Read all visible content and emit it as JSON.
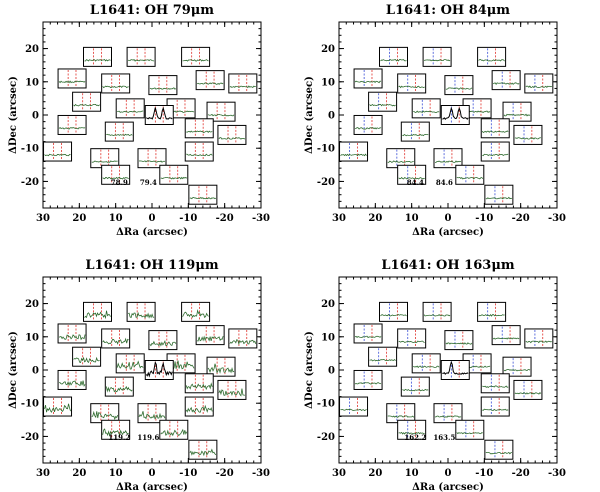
{
  "chart_data": [
    {
      "type": "spectral-map",
      "title": "L1641: OH 79μm",
      "xlabel": "ΔRa (arcsec)",
      "ylabel": "ΔDec (arcsec)",
      "xlim": [
        30,
        -30
      ],
      "ylim": [
        -28,
        28
      ],
      "x_ticks": [
        "30",
        "20",
        "10",
        "0",
        "-10",
        "-20",
        "-30"
      ],
      "y_ticks": [
        "20",
        "10",
        "0",
        "-10",
        "-20"
      ],
      "line_markers": [
        "78.9",
        "79.4"
      ],
      "marker_colors": [
        "red"
      ],
      "peak_spaxel_profile": "double-peak"
    },
    {
      "type": "spectral-map",
      "title": "L1641: OH 84μm",
      "xlabel": "ΔRa (arcsec)",
      "ylabel": "ΔDec (arcsec)",
      "xlim": [
        30,
        -30
      ],
      "ylim": [
        -28,
        28
      ],
      "x_ticks": [
        "30",
        "20",
        "10",
        "0",
        "-10",
        "-20",
        "-30"
      ],
      "y_ticks": [
        "20",
        "10",
        "0",
        "-10",
        "-20"
      ],
      "line_markers": [
        "84.4",
        "84.6"
      ],
      "marker_colors": [
        "blue",
        "red"
      ],
      "peak_spaxel_profile": "double-peak"
    },
    {
      "type": "spectral-map",
      "title": "L1641: OH 119μm",
      "xlabel": "ΔRa (arcsec)",
      "ylabel": "ΔDec (arcsec)",
      "xlim": [
        30,
        -30
      ],
      "ylim": [
        -28,
        28
      ],
      "x_ticks": [
        "30",
        "20",
        "10",
        "0",
        "-10",
        "-20",
        "-30"
      ],
      "y_ticks": [
        "20",
        "10",
        "0",
        "-10",
        "-20"
      ],
      "line_markers": [
        "119.2",
        "119.6"
      ],
      "marker_colors": [
        "red"
      ],
      "peak_spaxel_profile": "double-peak"
    },
    {
      "type": "spectral-map",
      "title": "L1641: OH 163μm",
      "xlabel": "ΔRa (arcsec)",
      "ylabel": "ΔDec (arcsec)",
      "xlim": [
        30,
        -30
      ],
      "ylim": [
        -28,
        28
      ],
      "x_ticks": [
        "30",
        "20",
        "10",
        "0",
        "-10",
        "-20",
        "-30"
      ],
      "y_ticks": [
        "20",
        "10",
        "0",
        "-10",
        "-20"
      ],
      "line_markers": [
        "162.2",
        "163.5"
      ],
      "marker_colors": [
        "blue",
        "red"
      ],
      "peak_spaxel_profile": "single-peak"
    }
  ],
  "colors": {
    "frame": "#000000",
    "spectrum": "#2e6b2e",
    "marker_red": "#e0302a",
    "marker_blue": "#3a4fd6"
  }
}
